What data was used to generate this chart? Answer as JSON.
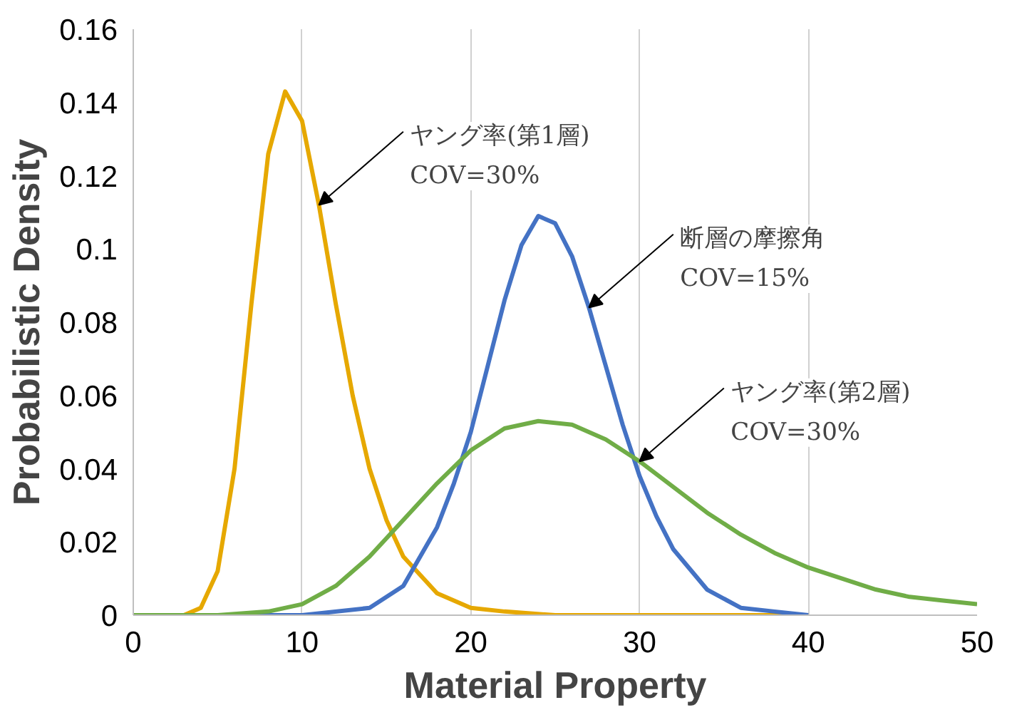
{
  "chart_data": {
    "type": "line",
    "xlabel": "Material Property",
    "ylabel": "Probabilistic Density",
    "xlim": [
      0,
      50
    ],
    "ylim": [
      0,
      0.16
    ],
    "xticks": [
      0,
      10,
      20,
      30,
      40,
      50
    ],
    "yticks": [
      0,
      0.02,
      0.04,
      0.06,
      0.08,
      0.1,
      0.12,
      0.14,
      0.16
    ],
    "grid": "x",
    "marker": "none",
    "line_style": "solid",
    "series": [
      {
        "color": "#e6a800",
        "x": [
          0,
          3,
          4,
          5,
          6,
          7,
          8,
          9,
          10,
          11,
          12,
          13,
          14,
          15,
          16,
          18,
          20,
          22,
          25,
          30,
          40
        ],
        "values": [
          0,
          0,
          0.002,
          0.012,
          0.04,
          0.085,
          0.126,
          0.143,
          0.135,
          0.112,
          0.085,
          0.06,
          0.04,
          0.026,
          0.016,
          0.006,
          0.002,
          0.001,
          0,
          0,
          0
        ]
      },
      {
        "color": "#4472c4",
        "x": [
          0,
          10,
          14,
          16,
          18,
          19,
          20,
          21,
          22,
          23,
          24,
          25,
          26,
          27,
          28,
          29,
          30,
          31,
          32,
          34,
          36,
          38,
          40
        ],
        "values": [
          0,
          0,
          0.002,
          0.008,
          0.024,
          0.036,
          0.05,
          0.068,
          0.086,
          0.101,
          0.109,
          0.107,
          0.098,
          0.084,
          0.068,
          0.052,
          0.038,
          0.027,
          0.018,
          0.007,
          0.002,
          0.001,
          0
        ]
      },
      {
        "color": "#70ad47",
        "x": [
          0,
          5,
          8,
          10,
          12,
          14,
          16,
          18,
          20,
          22,
          24,
          26,
          28,
          30,
          32,
          34,
          36,
          38,
          40,
          42,
          44,
          46,
          48,
          50
        ],
        "values": [
          0,
          0,
          0.001,
          0.003,
          0.008,
          0.016,
          0.026,
          0.036,
          0.045,
          0.051,
          0.053,
          0.052,
          0.048,
          0.042,
          0.035,
          0.028,
          0.022,
          0.017,
          0.013,
          0.01,
          0.007,
          0.005,
          0.004,
          0.003
        ]
      }
    ],
    "annotations": [
      {
        "text": "ヤング率(第1層)\nCOV=30%",
        "x": 11,
        "y": 0.112
      },
      {
        "text": "断層の摩擦角\nCOV=15%",
        "x": 27,
        "y": 0.084
      },
      {
        "text": "ヤング率(第2層)\nCOV=30%",
        "x": 30,
        "y": 0.042
      }
    ]
  }
}
